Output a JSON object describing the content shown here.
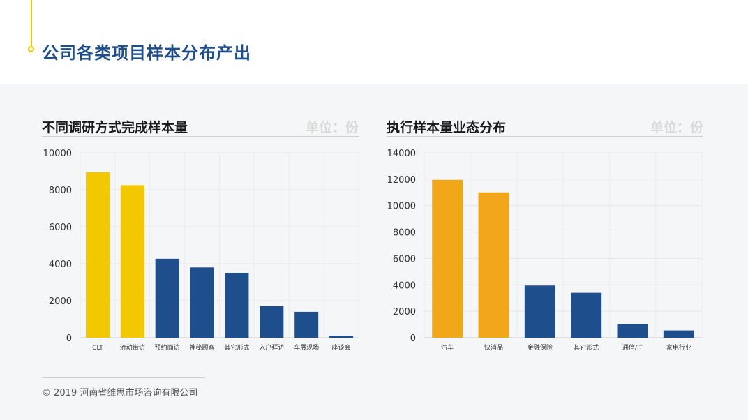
{
  "page": {
    "title": "公司各类项目样本分布产出",
    "footer": "©  2019 河南省维思市场咨询有限公司"
  },
  "colors": {
    "highlight_left": "#f2c800",
    "highlight_right": "#f2a71b",
    "normal": "#1f4e8c",
    "accent": "#f2c200"
  },
  "chart_data": [
    {
      "type": "bar",
      "title": "不同调研方式完成样本量",
      "unit": "单位：份",
      "categories": [
        "CLT",
        "流动街访",
        "预约面访",
        "神秘顾客",
        "其它形式",
        "入户拜访",
        "车展现场",
        "座谈会"
      ],
      "values": [
        8950,
        8250,
        4270,
        3800,
        3500,
        1700,
        1400,
        100
      ],
      "highlight": [
        true,
        true,
        false,
        false,
        false,
        false,
        false,
        false
      ],
      "ylim": [
        0,
        10000
      ],
      "yticks": [
        0,
        2000,
        4000,
        6000,
        8000,
        10000
      ],
      "grid": true,
      "legend": "none"
    },
    {
      "type": "bar",
      "title": "执行样本量业态分布",
      "unit": "单位：份",
      "categories": [
        "汽车",
        "快消品",
        "金融保险",
        "其它形式",
        "通信/IT",
        "家电行业"
      ],
      "values": [
        11950,
        11000,
        3950,
        3400,
        1050,
        550
      ],
      "highlight": [
        true,
        true,
        false,
        false,
        false,
        false
      ],
      "ylim": [
        0,
        14000
      ],
      "yticks": [
        0,
        2000,
        4000,
        6000,
        8000,
        10000,
        12000,
        14000
      ],
      "grid": true,
      "legend": "none"
    }
  ]
}
